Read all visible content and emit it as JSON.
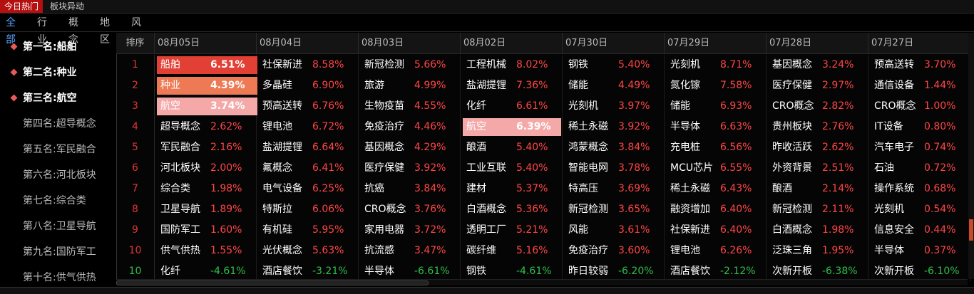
{
  "topbar": {
    "tabs": [
      "今日热门",
      "板块异动"
    ],
    "active": 0
  },
  "categories": {
    "items": [
      "全部",
      "行业",
      "概念",
      "地区",
      "风格"
    ],
    "active": 0
  },
  "ranking": [
    {
      "label": "第一名:船舶",
      "hot": true
    },
    {
      "label": "第二名:种业",
      "hot": true
    },
    {
      "label": "第三名:航空",
      "hot": true
    },
    {
      "label": "第四名:超导概念",
      "hot": false
    },
    {
      "label": "第五名:军民融合",
      "hot": false
    },
    {
      "label": "第六名:河北板块",
      "hot": false
    },
    {
      "label": "第七名:综合类",
      "hot": false
    },
    {
      "label": "第八名:卫星导航",
      "hot": false
    },
    {
      "label": "第九名:国防军工",
      "hot": false
    },
    {
      "label": "第十名:供气供热",
      "hot": false
    }
  ],
  "table": {
    "index_header": "排序",
    "dates": [
      "08月05日",
      "08月04日",
      "08月03日",
      "08月02日",
      "07月30日",
      "07月29日",
      "07月28日",
      "07月27日"
    ],
    "rows": [
      {
        "rank": "1",
        "down": false,
        "cells": [
          {
            "name": "船舶",
            "pct": "6.51%",
            "hl": "hl1"
          },
          {
            "name": "社保新进",
            "pct": "8.58%"
          },
          {
            "name": "新冠检测",
            "pct": "5.66%"
          },
          {
            "name": "工程机械",
            "pct": "8.02%"
          },
          {
            "name": "钢铁",
            "pct": "5.40%"
          },
          {
            "name": "光刻机",
            "pct": "8.71%"
          },
          {
            "name": "基因概念",
            "pct": "3.24%"
          },
          {
            "name": "预高送转",
            "pct": "3.70%"
          }
        ]
      },
      {
        "rank": "2",
        "down": false,
        "cells": [
          {
            "name": "种业",
            "pct": "4.39%",
            "hl": "hl2"
          },
          {
            "name": "多晶硅",
            "pct": "6.90%"
          },
          {
            "name": "旅游",
            "pct": "4.99%"
          },
          {
            "name": "盐湖提锂",
            "pct": "7.36%"
          },
          {
            "name": "储能",
            "pct": "4.49%"
          },
          {
            "name": "氮化镓",
            "pct": "7.58%"
          },
          {
            "name": "医疗保健",
            "pct": "2.97%"
          },
          {
            "name": "通信设备",
            "pct": "1.44%"
          }
        ]
      },
      {
        "rank": "3",
        "down": false,
        "cells": [
          {
            "name": "航空",
            "pct": "3.74%",
            "hl": "hl3"
          },
          {
            "name": "预高送转",
            "pct": "6.76%"
          },
          {
            "name": "生物疫苗",
            "pct": "4.55%"
          },
          {
            "name": "化纤",
            "pct": "6.61%"
          },
          {
            "name": "光刻机",
            "pct": "3.97%"
          },
          {
            "name": "储能",
            "pct": "6.93%"
          },
          {
            "name": "CRO概念",
            "pct": "2.82%"
          },
          {
            "name": "CRO概念",
            "pct": "1.00%"
          }
        ]
      },
      {
        "rank": "4",
        "down": false,
        "cells": [
          {
            "name": "超导概念",
            "pct": "2.62%"
          },
          {
            "name": "锂电池",
            "pct": "6.72%"
          },
          {
            "name": "免疫治疗",
            "pct": "4.46%"
          },
          {
            "name": "航空",
            "pct": "6.39%",
            "hl": "hlb"
          },
          {
            "name": "稀土永磁",
            "pct": "3.92%"
          },
          {
            "name": "半导体",
            "pct": "6.63%"
          },
          {
            "name": "贵州板块",
            "pct": "2.76%"
          },
          {
            "name": "IT设备",
            "pct": "0.80%"
          }
        ]
      },
      {
        "rank": "5",
        "down": false,
        "cells": [
          {
            "name": "军民融合",
            "pct": "2.16%"
          },
          {
            "name": "盐湖提锂",
            "pct": "6.64%"
          },
          {
            "name": "基因概念",
            "pct": "4.29%"
          },
          {
            "name": "酿酒",
            "pct": "5.40%"
          },
          {
            "name": "鸿蒙概念",
            "pct": "3.84%"
          },
          {
            "name": "充电桩",
            "pct": "6.56%"
          },
          {
            "name": "昨收活跃",
            "pct": "2.62%"
          },
          {
            "name": "汽车电子",
            "pct": "0.74%"
          }
        ]
      },
      {
        "rank": "6",
        "down": false,
        "cells": [
          {
            "name": "河北板块",
            "pct": "2.00%"
          },
          {
            "name": "氟概念",
            "pct": "6.41%"
          },
          {
            "name": "医疗保健",
            "pct": "3.92%"
          },
          {
            "name": "工业互联",
            "pct": "5.40%"
          },
          {
            "name": "智能电网",
            "pct": "3.78%"
          },
          {
            "name": "MCU芯片",
            "pct": "6.55%"
          },
          {
            "name": "外资背景",
            "pct": "2.51%"
          },
          {
            "name": "石油",
            "pct": "0.72%"
          }
        ]
      },
      {
        "rank": "7",
        "down": false,
        "cells": [
          {
            "name": "综合类",
            "pct": "1.98%"
          },
          {
            "name": "电气设备",
            "pct": "6.25%"
          },
          {
            "name": "抗癌",
            "pct": "3.84%"
          },
          {
            "name": "建材",
            "pct": "5.37%"
          },
          {
            "name": "特高压",
            "pct": "3.69%"
          },
          {
            "name": "稀土永磁",
            "pct": "6.43%"
          },
          {
            "name": "酿酒",
            "pct": "2.14%"
          },
          {
            "name": "操作系统",
            "pct": "0.68%"
          }
        ]
      },
      {
        "rank": "8",
        "down": false,
        "cells": [
          {
            "name": "卫星导航",
            "pct": "1.89%"
          },
          {
            "name": "特斯拉",
            "pct": "6.06%"
          },
          {
            "name": "CRO概念",
            "pct": "3.76%"
          },
          {
            "name": "白酒概念",
            "pct": "5.36%"
          },
          {
            "name": "新冠检测",
            "pct": "3.65%"
          },
          {
            "name": "融资增加",
            "pct": "6.40%"
          },
          {
            "name": "新冠检测",
            "pct": "2.11%"
          },
          {
            "name": "光刻机",
            "pct": "0.54%"
          }
        ]
      },
      {
        "rank": "9",
        "down": false,
        "cells": [
          {
            "name": "国防军工",
            "pct": "1.60%"
          },
          {
            "name": "有机硅",
            "pct": "5.95%"
          },
          {
            "name": "家用电器",
            "pct": "3.72%"
          },
          {
            "name": "透明工厂",
            "pct": "5.21%"
          },
          {
            "name": "风能",
            "pct": "3.61%"
          },
          {
            "name": "社保新进",
            "pct": "6.40%"
          },
          {
            "name": "白酒概念",
            "pct": "1.98%"
          },
          {
            "name": "信息安全",
            "pct": "0.44%"
          }
        ]
      },
      {
        "rank": "10",
        "down": false,
        "cells": [
          {
            "name": "供气供热",
            "pct": "1.55%"
          },
          {
            "name": "光伏概念",
            "pct": "5.63%"
          },
          {
            "name": "抗流感",
            "pct": "3.47%"
          },
          {
            "name": "碳纤维",
            "pct": "5.16%"
          },
          {
            "name": "免疫治疗",
            "pct": "3.60%"
          },
          {
            "name": "锂电池",
            "pct": "6.26%"
          },
          {
            "name": "泛珠三角",
            "pct": "1.95%"
          },
          {
            "name": "半导体",
            "pct": "0.37%"
          }
        ]
      },
      {
        "rank": "10",
        "down": true,
        "cells": [
          {
            "name": "化纤",
            "pct": "-4.61%"
          },
          {
            "name": "酒店餐饮",
            "pct": "-3.21%"
          },
          {
            "name": "半导体",
            "pct": "-6.61%"
          },
          {
            "name": "钢铁",
            "pct": "-4.61%"
          },
          {
            "name": "昨日较弱",
            "pct": "-6.20%"
          },
          {
            "name": "酒店餐饮",
            "pct": "-2.12%"
          },
          {
            "name": "次新开板",
            "pct": "-6.38%"
          },
          {
            "name": "次新开板",
            "pct": "-6.10%"
          }
        ]
      }
    ]
  }
}
